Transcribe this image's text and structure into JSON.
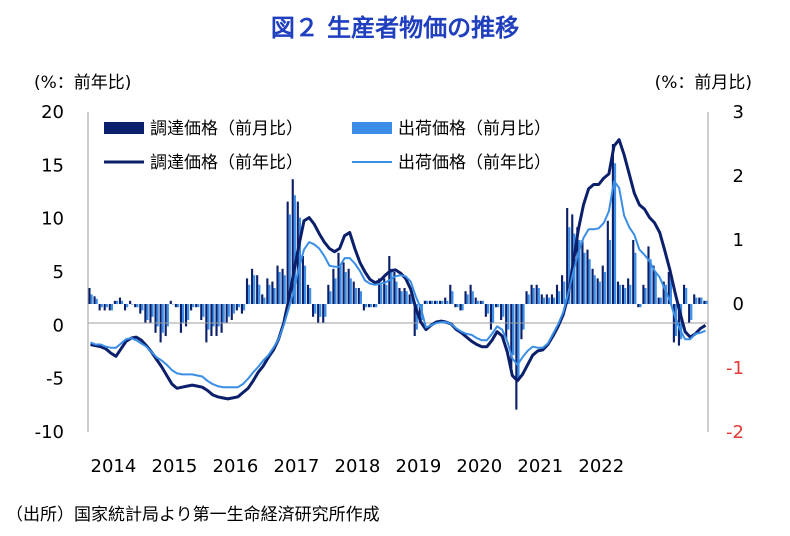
{
  "title": "図２ 生産者物価の推移",
  "left_unit": "(%：前年比)",
  "right_unit": "(%：前月比)",
  "source": "（出所）国家統計局より第一生命経済研究所作成",
  "colors": {
    "dark": "#0b1f6b",
    "light": "#3a8ee6",
    "axis_left": "#000000",
    "axis_right": "#e53935"
  },
  "chart_data": {
    "type": "bar+line",
    "x_ticks": [
      "2014",
      "2015",
      "2016",
      "2017",
      "2018",
      "2019",
      "2020",
      "2021",
      "2022"
    ],
    "left_axis": {
      "ticks": [
        20,
        15,
        10,
        5,
        0,
        -5,
        -10
      ],
      "ylim": [
        -10,
        20
      ]
    },
    "right_axis": {
      "ticks": [
        3,
        2,
        1,
        0,
        -1,
        -2
      ],
      "ylim": [
        -2,
        3
      ]
    },
    "legend": {
      "procurement_mom": "調達価格（前月比）",
      "shipment_mom": "出荷価格（前月比）",
      "procurement_yoy": "調達価格（前年比）",
      "shipment_yoy": "出荷価格（前年比）"
    },
    "series": [
      {
        "name": "調達価格（前年比）",
        "axis": "left",
        "kind": "line",
        "values": [
          -1.8,
          -1.9,
          -2.0,
          -2.2,
          -2.6,
          -2.9,
          -2.2,
          -1.5,
          -1.2,
          -1.1,
          -1.4,
          -1.9,
          -2.5,
          -3.2,
          -3.9,
          -4.7,
          -5.5,
          -5.9,
          -5.8,
          -5.7,
          -5.6,
          -5.7,
          -5.8,
          -6.1,
          -6.5,
          -6.7,
          -6.8,
          -6.9,
          -6.8,
          -6.7,
          -6.3,
          -5.9,
          -5.2,
          -4.4,
          -3.8,
          -3.0,
          -2.3,
          -1.3,
          0.2,
          2.4,
          5.0,
          7.5,
          9.8,
          10.1,
          9.5,
          8.6,
          7.8,
          7.2,
          6.9,
          7.2,
          8.4,
          8.7,
          7.2,
          5.9,
          5.0,
          4.3,
          4.0,
          4.2,
          4.7,
          5.1,
          5.2,
          4.9,
          4.4,
          3.4,
          1.6,
          0.3,
          -0.4,
          0.0,
          0.3,
          0.4,
          0.3,
          0.1,
          -0.4,
          -0.7,
          -1.1,
          -1.5,
          -1.8,
          -2.0,
          -2.0,
          -1.4,
          -0.6,
          -1.0,
          -2.5,
          -4.7,
          -5.2,
          -4.6,
          -3.7,
          -2.8,
          -2.4,
          -2.3,
          -1.8,
          -1.0,
          -0.1,
          1.0,
          2.8,
          5.9,
          9.0,
          11.3,
          12.8,
          13.2,
          13.2,
          13.8,
          14.2,
          16.8,
          17.4,
          16.0,
          14.2,
          12.4,
          11.3,
          10.9,
          10.1,
          9.6,
          8.7,
          7.0,
          5.2,
          3.1,
          1.2,
          -0.6,
          -1.1,
          -0.8,
          -0.3,
          0.0
        ]
      },
      {
        "name": "出荷価格（前年比）",
        "axis": "left",
        "kind": "line",
        "values": [
          -1.6,
          -1.8,
          -1.8,
          -2.0,
          -2.1,
          -2.1,
          -1.7,
          -1.3,
          -1.2,
          -1.4,
          -1.7,
          -2.0,
          -2.5,
          -3.0,
          -3.3,
          -3.7,
          -4.2,
          -4.5,
          -4.6,
          -4.6,
          -4.6,
          -4.7,
          -4.8,
          -5.2,
          -5.5,
          -5.7,
          -5.8,
          -5.8,
          -5.8,
          -5.8,
          -5.5,
          -5.0,
          -4.4,
          -3.9,
          -3.3,
          -2.8,
          -2.1,
          -1.3,
          0.0,
          1.6,
          3.3,
          5.4,
          7.1,
          7.8,
          7.6,
          7.2,
          6.5,
          5.6,
          5.5,
          5.5,
          6.3,
          6.3,
          5.8,
          5.1,
          4.2,
          3.9,
          3.8,
          3.9,
          4.0,
          4.3,
          4.6,
          4.7,
          4.6,
          4.1,
          2.7,
          1.6,
          -0.2,
          0.0,
          0.2,
          0.3,
          0.3,
          0.1,
          -0.3,
          -0.6,
          -0.8,
          -0.9,
          -1.2,
          -1.4,
          -1.4,
          -0.8,
          -0.1,
          -0.4,
          -1.5,
          -3.1,
          -3.7,
          -3.0,
          -2.4,
          -2.0,
          -2.1,
          -2.1,
          -1.7,
          -0.8,
          0.1,
          1.2,
          3.0,
          5.0,
          6.8,
          8.2,
          9.0,
          9.0,
          9.1,
          9.6,
          10.7,
          13.5,
          12.9,
          10.3,
          9.2,
          8.5,
          7.1,
          6.6,
          6.0,
          5.1,
          4.5,
          3.4,
          2.3,
          0.8,
          -0.4,
          -1.3,
          -1.3,
          -0.8,
          -0.7,
          -0.5
        ]
      },
      {
        "name": "調達価格（前月比）",
        "axis": "right",
        "kind": "bar",
        "values": [
          0.25,
          0.12,
          -0.1,
          -0.1,
          -0.1,
          0.05,
          0.1,
          -0.1,
          0.05,
          -0.05,
          -0.15,
          -0.3,
          -0.3,
          -0.45,
          -0.6,
          -0.5,
          0.05,
          -0.05,
          -0.45,
          -0.35,
          -0.1,
          -0.05,
          -0.25,
          -0.6,
          -0.5,
          -0.5,
          -0.45,
          -0.3,
          -0.25,
          -0.1,
          -0.15,
          0.4,
          0.55,
          0.45,
          0.15,
          0.4,
          0.35,
          0.6,
          0.55,
          1.6,
          1.95,
          1.6,
          0.75,
          0.3,
          -0.2,
          -0.3,
          -0.3,
          0.3,
          0.55,
          0.8,
          0.65,
          0.55,
          0.35,
          0.25,
          -0.1,
          -0.05,
          -0.05,
          0.4,
          0.4,
          0.75,
          0.5,
          0.25,
          0.25,
          0.15,
          -0.5,
          -0.3,
          0.05,
          0.05,
          0.05,
          0.05,
          0.1,
          0.3,
          -0.05,
          -0.1,
          0.2,
          0.3,
          0.1,
          0.05,
          -0.2,
          -0.4,
          -0.05,
          -0.25,
          -0.55,
          -1.0,
          -1.65,
          -0.55,
          0.2,
          0.3,
          0.3,
          0.15,
          0.15,
          0.15,
          0.3,
          0.45,
          1.5,
          1.4,
          1.2,
          1.0,
          0.85,
          0.55,
          0.4,
          0.6,
          1.3,
          2.5,
          0.35,
          0.3,
          0.4,
          1.0,
          -0.05,
          0.3,
          0.9,
          0.6,
          0.1,
          0.35,
          0.5,
          -0.6,
          -0.65,
          0.3,
          -0.3,
          0.15,
          0.1,
          0.05
        ]
      },
      {
        "name": "出荷価格（前月比）",
        "axis": "right",
        "kind": "bar",
        "values": [
          0.15,
          0.08,
          -0.05,
          -0.05,
          -0.1,
          0.05,
          0.05,
          -0.05,
          0.0,
          -0.05,
          -0.1,
          -0.25,
          -0.2,
          -0.35,
          -0.45,
          -0.35,
          0.0,
          -0.05,
          -0.3,
          -0.25,
          -0.05,
          -0.05,
          -0.2,
          -0.4,
          -0.35,
          -0.35,
          -0.3,
          -0.2,
          -0.15,
          -0.05,
          -0.1,
          0.3,
          0.45,
          0.3,
          0.1,
          0.3,
          0.25,
          0.5,
          0.45,
          1.4,
          1.7,
          1.35,
          0.6,
          0.25,
          -0.15,
          -0.2,
          -0.2,
          0.2,
          0.4,
          0.6,
          0.5,
          0.4,
          0.25,
          0.2,
          -0.05,
          -0.05,
          -0.05,
          0.3,
          0.3,
          0.55,
          0.35,
          0.2,
          0.2,
          0.1,
          -0.4,
          -0.25,
          0.05,
          0.05,
          0.05,
          0.05,
          0.05,
          0.2,
          -0.05,
          -0.1,
          0.15,
          0.2,
          0.05,
          0.05,
          -0.15,
          -0.3,
          -0.05,
          -0.2,
          -0.4,
          -0.8,
          -1.2,
          -0.4,
          0.15,
          0.25,
          0.25,
          0.1,
          0.1,
          0.1,
          0.2,
          0.35,
          1.2,
          1.1,
          1.0,
          0.8,
          0.7,
          0.45,
          0.35,
          0.5,
          1.0,
          2.2,
          0.3,
          0.25,
          0.3,
          0.8,
          -0.05,
          0.25,
          0.7,
          0.5,
          0.1,
          0.3,
          0.4,
          -0.5,
          -0.55,
          0.25,
          -0.25,
          0.1,
          0.1,
          0.05
        ]
      }
    ],
    "gridlines": false,
    "legend_position": "top-left"
  }
}
